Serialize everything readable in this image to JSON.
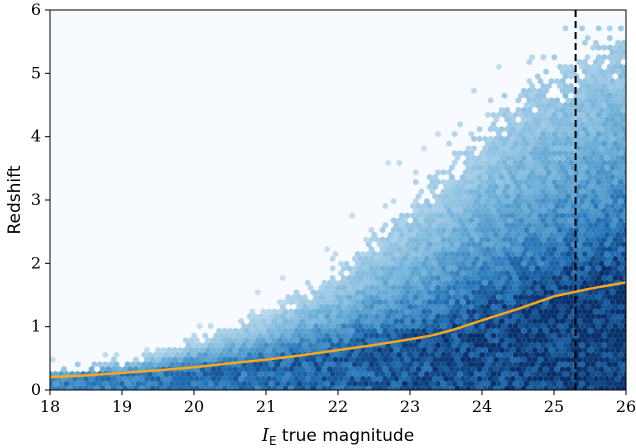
{
  "chart_data": {
    "type": "heatmap",
    "subtype": "hexbin-density",
    "xlabel": {
      "symbol": "I",
      "subscript": "E",
      "text": " true magnitude"
    },
    "ylabel": "Redshift",
    "xlim": [
      18,
      26
    ],
    "ylim": [
      0,
      6
    ],
    "xticks": [
      18,
      19,
      20,
      21,
      22,
      23,
      24,
      25,
      26
    ],
    "yticks": [
      0,
      1,
      2,
      3,
      4,
      5,
      6
    ],
    "grid": false,
    "colormap": "Blues",
    "colors": {
      "background": "#f7fbff",
      "density_low": "#deebf7",
      "density_mid": "#6baed6",
      "density_high": "#2171b5",
      "density_max": "#08306b",
      "median_line": "#f5a623",
      "cut_line": "#000000"
    },
    "density_envelope": {
      "x": [
        18.0,
        18.5,
        19.0,
        19.5,
        20.0,
        20.5,
        21.0,
        21.5,
        22.0,
        22.5,
        23.0,
        23.5,
        24.0,
        24.5,
        25.0,
        25.5,
        26.0
      ],
      "low": [
        0.05,
        0.05,
        0.04,
        0.04,
        0.04,
        0.03,
        0.03,
        0.03,
        0.03,
        0.03,
        0.03,
        0.03,
        0.03,
        0.03,
        0.03,
        0.03,
        0.03
      ],
      "high": [
        0.3,
        0.38,
        0.5,
        0.65,
        0.85,
        1.05,
        1.3,
        1.6,
        2.0,
        2.5,
        3.0,
        3.6,
        4.2,
        4.8,
        5.2,
        5.5,
        5.8
      ]
    },
    "series": [
      {
        "style": "solid",
        "x": [
          18.0,
          18.5,
          19.0,
          19.5,
          20.0,
          20.5,
          21.0,
          21.5,
          22.0,
          22.5,
          23.0,
          23.3,
          23.6,
          24.0,
          24.5,
          25.0,
          25.5,
          26.0
        ],
        "y": [
          0.2,
          0.23,
          0.27,
          0.31,
          0.36,
          0.42,
          0.48,
          0.55,
          0.63,
          0.71,
          0.8,
          0.86,
          0.95,
          1.1,
          1.28,
          1.48,
          1.6,
          1.7
        ]
      }
    ],
    "annotations": [
      {
        "type": "vline",
        "style": "dashed",
        "x": 25.3
      }
    ]
  }
}
